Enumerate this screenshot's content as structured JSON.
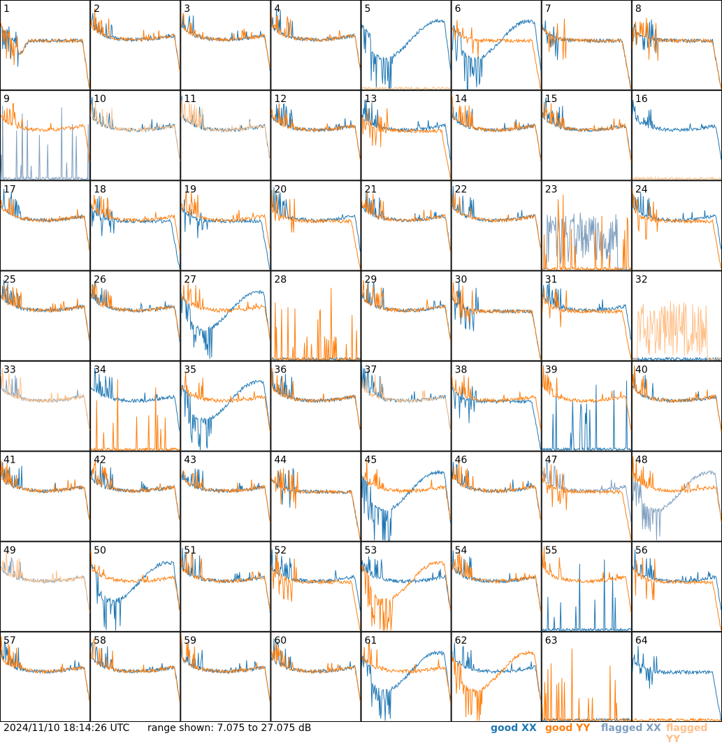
{
  "chart_data": {
    "type": "line",
    "title": "",
    "timestamp": "2024/11/10 18:14:26 UTC",
    "range_text": "range shown: 7.075 to 27.075 dB",
    "ylim": [
      7.075,
      27.075
    ],
    "grid": {
      "rows": 8,
      "cols": 8
    },
    "legend": [
      {
        "label": "good XX",
        "color": "#1f77b4"
      },
      {
        "label": "good YY",
        "color": "#ff7f0e"
      },
      {
        "label": "flagged XX",
        "color": "#7f9fbf"
      },
      {
        "label": "flagged YY",
        "color": "#ffbf87"
      }
    ],
    "panels": [
      {
        "label": "1",
        "xx": "g",
        "yy": "g",
        "sx": "dip",
        "sy": "dip"
      },
      {
        "label": "2",
        "xx": "g",
        "yy": "g",
        "sx": "bowl",
        "sy": "bowl"
      },
      {
        "label": "3",
        "xx": "g",
        "yy": "g",
        "sx": "bowl",
        "sy": "bowl"
      },
      {
        "label": "4",
        "xx": "g",
        "yy": "g",
        "sx": "bowl",
        "sy": "bowl"
      },
      {
        "label": "5",
        "xx": "g",
        "yy": "f",
        "sx": "hump",
        "sy": "flat"
      },
      {
        "label": "6",
        "xx": "g",
        "yy": "g",
        "sx": "hump",
        "sy": "plateau"
      },
      {
        "label": "7",
        "xx": "g",
        "yy": "g",
        "sx": "plateau",
        "sy": "plateau"
      },
      {
        "label": "8",
        "xx": "g",
        "yy": "g",
        "sx": "plateau",
        "sy": "plateau"
      },
      {
        "label": "9",
        "xx": "f",
        "yy": "g",
        "sx": "spikes",
        "sy": "bowl"
      },
      {
        "label": "10",
        "xx": "g",
        "yy": "f",
        "sx": "bowl",
        "sy": "bowl"
      },
      {
        "label": "11",
        "xx": "g",
        "yy": "f",
        "sx": "bowl",
        "sy": "bowl"
      },
      {
        "label": "12",
        "xx": "g",
        "yy": "g",
        "sx": "bowl",
        "sy": "bowl"
      },
      {
        "label": "13",
        "xx": "g",
        "yy": "g",
        "sx": "bowl",
        "sy": "plateau"
      },
      {
        "label": "14",
        "xx": "g",
        "yy": "g",
        "sx": "bowl",
        "sy": "bowl"
      },
      {
        "label": "15",
        "xx": "g",
        "yy": "g",
        "sx": "bowl",
        "sy": "bowl"
      },
      {
        "label": "16",
        "xx": "g",
        "yy": "f",
        "sx": "bowl",
        "sy": "flat"
      },
      {
        "label": "17",
        "xx": "g",
        "yy": "g",
        "sx": "bowl",
        "sy": "bowl"
      },
      {
        "label": "18",
        "xx": "g",
        "yy": "g",
        "sx": "plateau",
        "sy": "bowl"
      },
      {
        "label": "19",
        "xx": "g",
        "yy": "g",
        "sx": "plateau",
        "sy": "bowl"
      },
      {
        "label": "20",
        "xx": "g",
        "yy": "g",
        "sx": "bowl",
        "sy": "plateau"
      },
      {
        "label": "21",
        "xx": "g",
        "yy": "g",
        "sx": "bowl",
        "sy": "bowl"
      },
      {
        "label": "22",
        "xx": "g",
        "yy": "g",
        "sx": "bowl",
        "sy": "bowl"
      },
      {
        "label": "23",
        "xx": "f",
        "yy": "g",
        "sx": "noise",
        "sy": "spikes"
      },
      {
        "label": "24",
        "xx": "g",
        "yy": "g",
        "sx": "bowl",
        "sy": "plateau"
      },
      {
        "label": "25",
        "xx": "g",
        "yy": "g",
        "sx": "bowl",
        "sy": "bowl"
      },
      {
        "label": "26",
        "xx": "g",
        "yy": "g",
        "sx": "bowl",
        "sy": "bowl"
      },
      {
        "label": "27",
        "xx": "g",
        "yy": "g",
        "sx": "hump",
        "sy": "bowl"
      },
      {
        "label": "28",
        "xx": "g",
        "yy": "g",
        "sx": "flat",
        "sy": "spikes"
      },
      {
        "label": "29",
        "xx": "g",
        "yy": "g",
        "sx": "bowl",
        "sy": "bowl"
      },
      {
        "label": "30",
        "xx": "g",
        "yy": "g",
        "sx": "plateau",
        "sy": "plateau"
      },
      {
        "label": "31",
        "xx": "g",
        "yy": "g",
        "sx": "bowl",
        "sy": "plateau"
      },
      {
        "label": "32",
        "xx": "g",
        "yy": "f",
        "sx": "flat",
        "sy": "noise"
      },
      {
        "label": "33",
        "xx": "f",
        "yy": "f",
        "sx": "bowl",
        "sy": "bowl"
      },
      {
        "label": "34",
        "xx": "g",
        "yy": "g",
        "sx": "bowl",
        "sy": "spikes"
      },
      {
        "label": "35",
        "xx": "g",
        "yy": "g",
        "sx": "hump",
        "sy": "bowl"
      },
      {
        "label": "36",
        "xx": "g",
        "yy": "g",
        "sx": "bowl",
        "sy": "bowl"
      },
      {
        "label": "37",
        "xx": "g",
        "yy": "f",
        "sx": "bowl",
        "sy": "bowl"
      },
      {
        "label": "38",
        "xx": "g",
        "yy": "g",
        "sx": "plateau",
        "sy": "bowl"
      },
      {
        "label": "39",
        "xx": "g",
        "yy": "g",
        "sx": "spikes",
        "sy": "bowl"
      },
      {
        "label": "40",
        "xx": "g",
        "yy": "g",
        "sx": "bowl",
        "sy": "bowl"
      },
      {
        "label": "41",
        "xx": "g",
        "yy": "g",
        "sx": "bowl",
        "sy": "bowl"
      },
      {
        "label": "42",
        "xx": "g",
        "yy": "g",
        "sx": "bowl",
        "sy": "bowl"
      },
      {
        "label": "43",
        "xx": "g",
        "yy": "g",
        "sx": "bowl",
        "sy": "bowl"
      },
      {
        "label": "44",
        "xx": "g",
        "yy": "g",
        "sx": "plateau",
        "sy": "plateau"
      },
      {
        "label": "45",
        "xx": "g",
        "yy": "g",
        "sx": "hump",
        "sy": "bowl"
      },
      {
        "label": "46",
        "xx": "g",
        "yy": "g",
        "sx": "bowl",
        "sy": "bowl"
      },
      {
        "label": "47",
        "xx": "f",
        "yy": "g",
        "sx": "bowl",
        "sy": "plateau"
      },
      {
        "label": "48",
        "xx": "f",
        "yy": "g",
        "sx": "hump",
        "sy": "bowl"
      },
      {
        "label": "49",
        "xx": "f",
        "yy": "f",
        "sx": "bowl",
        "sy": "bowl"
      },
      {
        "label": "50",
        "xx": "g",
        "yy": "g",
        "sx": "hump",
        "sy": "bowl"
      },
      {
        "label": "51",
        "xx": "g",
        "yy": "g",
        "sx": "bowl",
        "sy": "bowl"
      },
      {
        "label": "52",
        "xx": "g",
        "yy": "g",
        "sx": "bowl",
        "sy": "plateau"
      },
      {
        "label": "53",
        "xx": "g",
        "yy": "g",
        "sx": "bowl",
        "sy": "hump"
      },
      {
        "label": "54",
        "xx": "g",
        "yy": "g",
        "sx": "bowl",
        "sy": "bowl"
      },
      {
        "label": "55",
        "xx": "g",
        "yy": "g",
        "sx": "spikes",
        "sy": "bowl"
      },
      {
        "label": "56",
        "xx": "g",
        "yy": "g",
        "sx": "bowl",
        "sy": "plateau"
      },
      {
        "label": "57",
        "xx": "g",
        "yy": "g",
        "sx": "bowl",
        "sy": "bowl"
      },
      {
        "label": "58",
        "xx": "g",
        "yy": "g",
        "sx": "bowl",
        "sy": "bowl"
      },
      {
        "label": "59",
        "xx": "g",
        "yy": "g",
        "sx": "bowl",
        "sy": "bowl"
      },
      {
        "label": "60",
        "xx": "g",
        "yy": "g",
        "sx": "bowl",
        "sy": "bowl"
      },
      {
        "label": "61",
        "xx": "g",
        "yy": "g",
        "sx": "hump",
        "sy": "bowl"
      },
      {
        "label": "62",
        "xx": "g",
        "yy": "g",
        "sx": "bowl",
        "sy": "hump"
      },
      {
        "label": "63",
        "xx": "g",
        "yy": "g",
        "sx": "flat",
        "sy": "spikes"
      },
      {
        "label": "64",
        "xx": "g",
        "yy": "g",
        "sx": "plateau",
        "sy": "flat"
      }
    ]
  }
}
